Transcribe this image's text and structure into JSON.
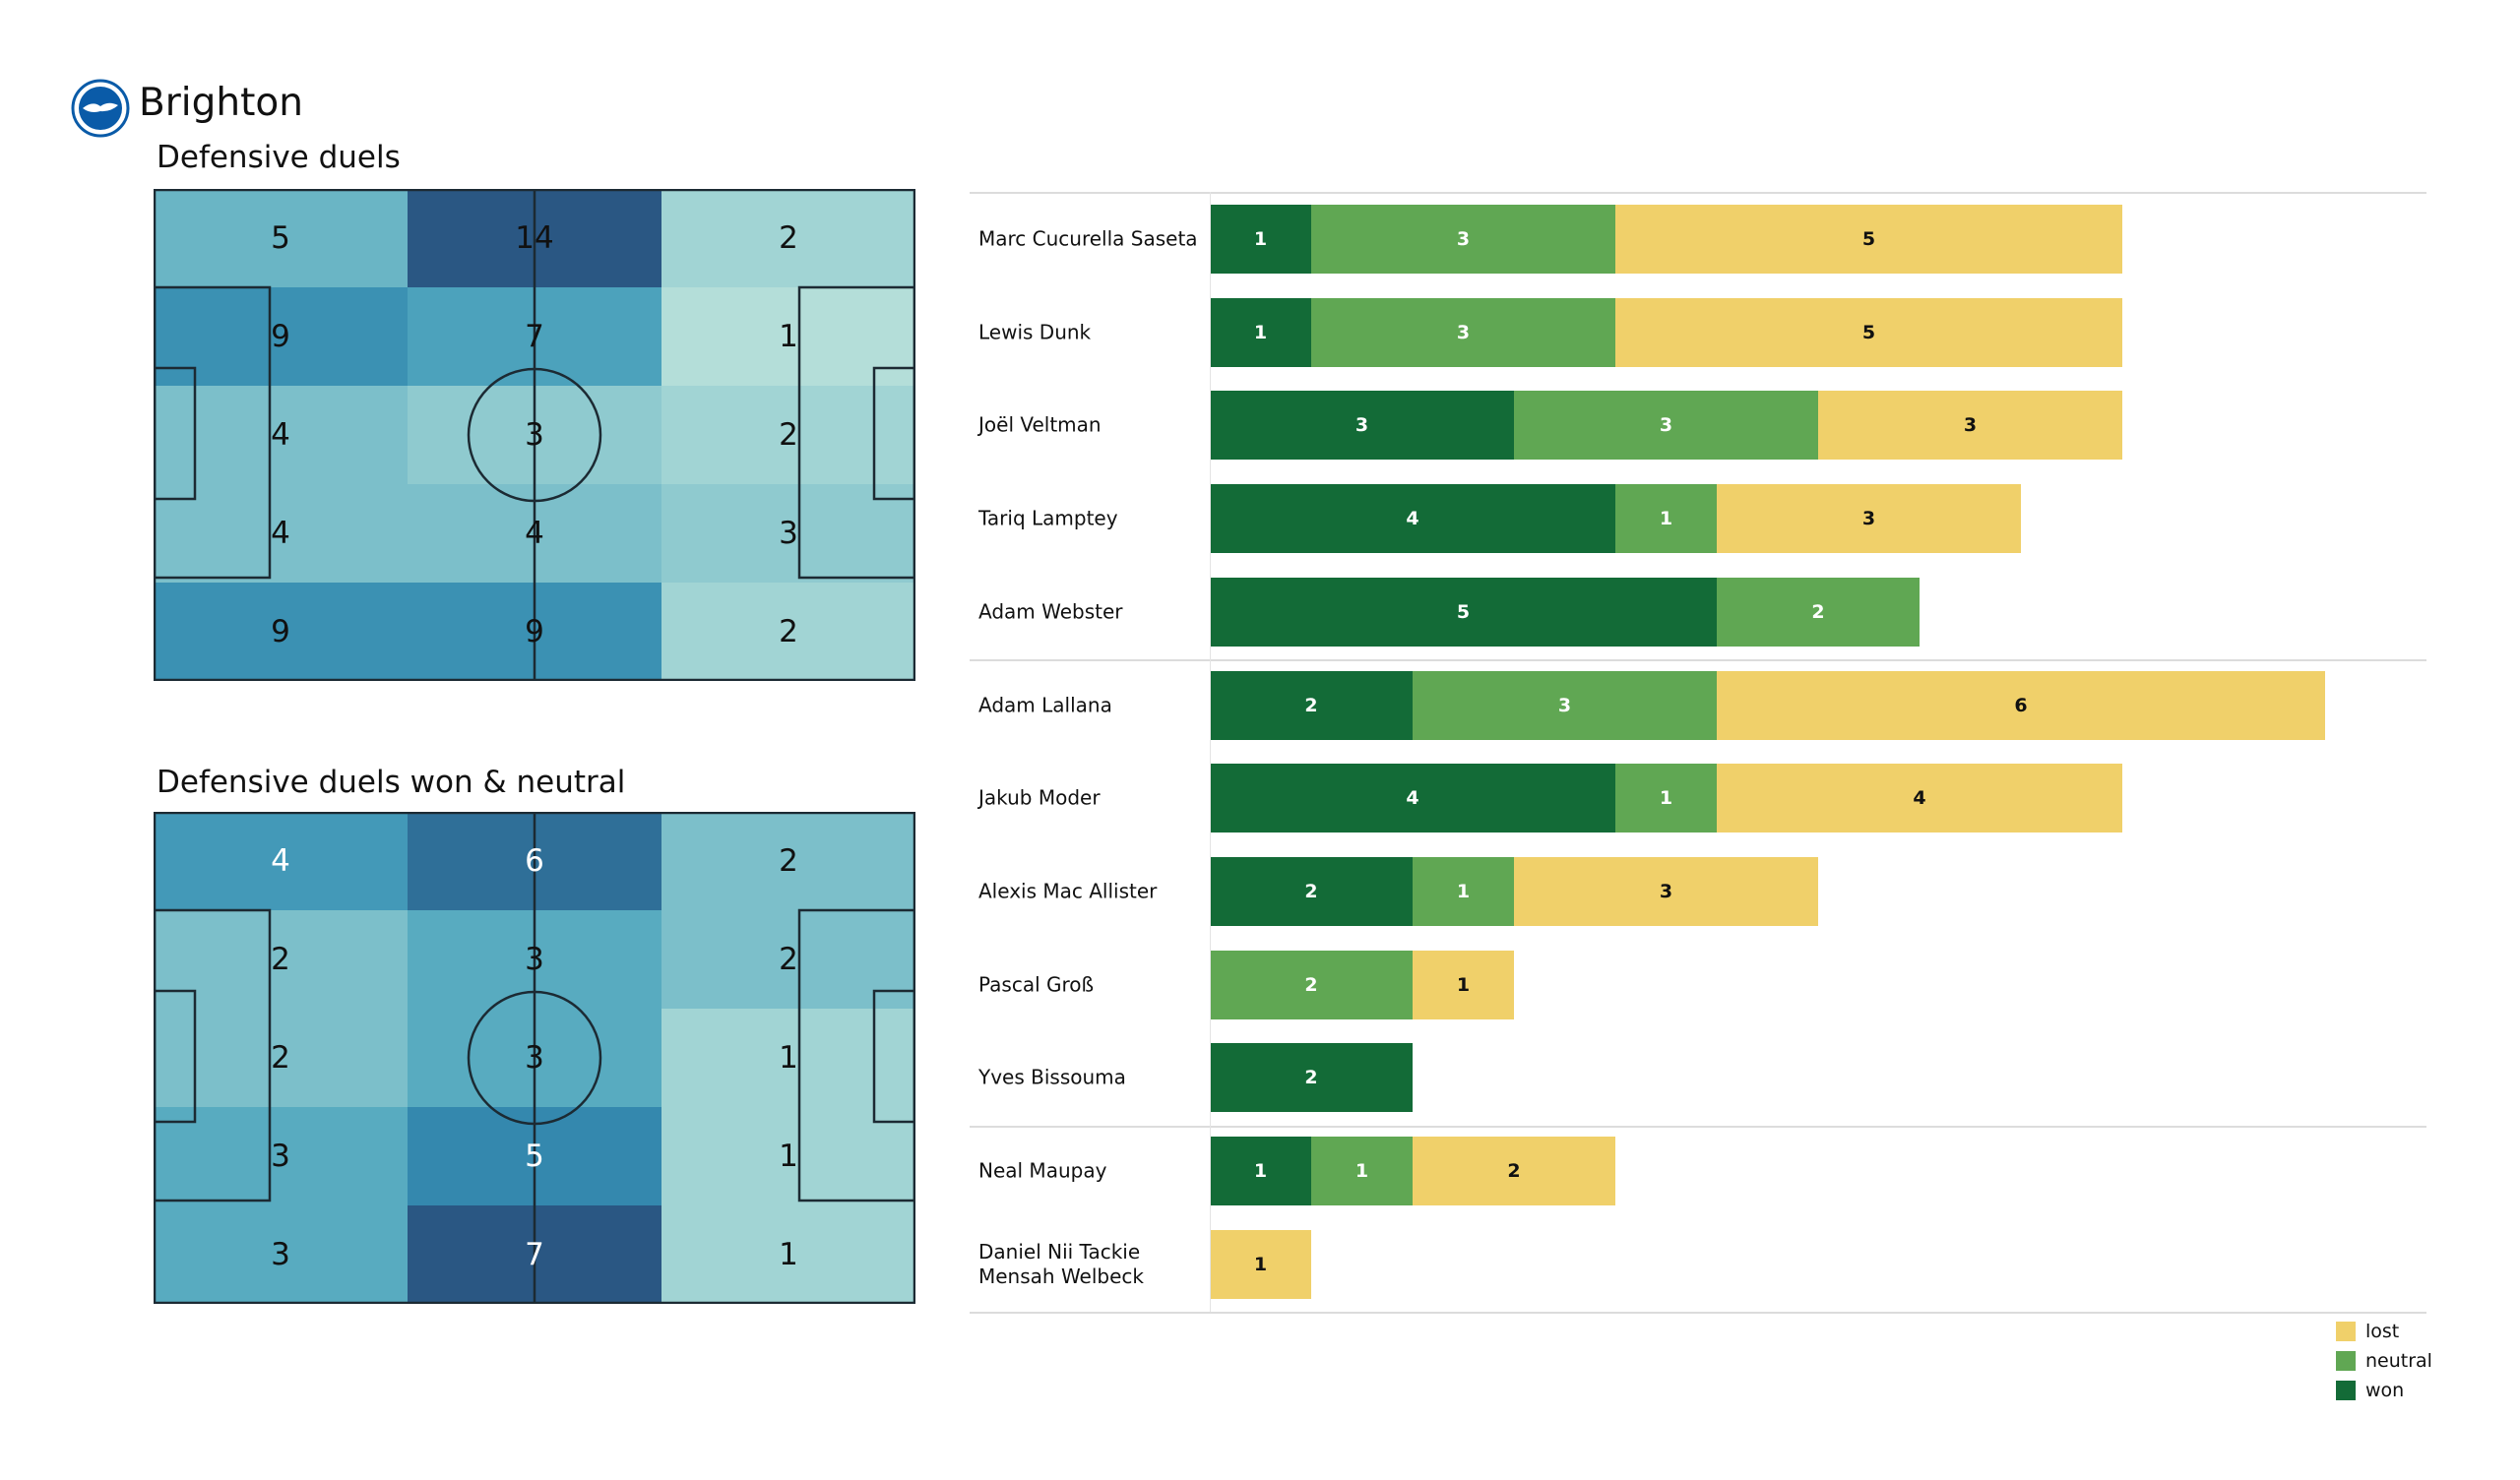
{
  "header": {
    "team": "Brighton",
    "logo_icon": "brighton-crest"
  },
  "chart_data": [
    {
      "type": "heatmap",
      "title": "Defensive duels",
      "rows": [
        [
          5,
          14,
          2
        ],
        [
          9,
          7,
          1
        ],
        [
          4,
          3,
          2
        ],
        [
          4,
          4,
          3
        ],
        [
          9,
          9,
          2
        ]
      ]
    },
    {
      "type": "heatmap",
      "title": "Defensive duels won & neutral",
      "rows": [
        [
          4,
          6,
          2
        ],
        [
          2,
          3,
          2
        ],
        [
          2,
          3,
          1
        ],
        [
          3,
          5,
          1
        ],
        [
          3,
          7,
          1
        ]
      ]
    },
    {
      "type": "bar",
      "orientation": "horizontal-stacked",
      "legend_placement": "bottom-right",
      "legend": [
        "lost",
        "neutral",
        "won"
      ],
      "colors": {
        "won": "#136b37",
        "neutral": "#60a753",
        "lost": "#f0d06a"
      },
      "groups": [
        [
          {
            "name": "Marc Cucurella Saseta",
            "won": 1,
            "neutral": 3,
            "lost": 5
          },
          {
            "name": "Lewis Dunk",
            "won": 1,
            "neutral": 3,
            "lost": 5
          },
          {
            "name": "Joël Veltman",
            "won": 3,
            "neutral": 3,
            "lost": 3
          },
          {
            "name": "Tariq Lamptey",
            "won": 4,
            "neutral": 1,
            "lost": 3
          },
          {
            "name": "Adam Webster",
            "won": 5,
            "neutral": 2,
            "lost": 0
          }
        ],
        [
          {
            "name": "Adam Lallana",
            "won": 2,
            "neutral": 3,
            "lost": 6
          },
          {
            "name": "Jakub Moder",
            "won": 4,
            "neutral": 1,
            "lost": 4
          },
          {
            "name": "Alexis Mac Allister",
            "won": 2,
            "neutral": 1,
            "lost": 3
          },
          {
            "name": "Pascal Groß",
            "won": 0,
            "neutral": 2,
            "lost": 1
          },
          {
            "name": "Yves Bissouma",
            "won": 2,
            "neutral": 0,
            "lost": 0
          }
        ],
        [
          {
            "name": "Neal Maupay",
            "won": 1,
            "neutral": 1,
            "lost": 2
          },
          {
            "name": "Daniel Nii Tackie\nMensah Welbeck",
            "won": 0,
            "neutral": 0,
            "lost": 1
          }
        ]
      ]
    }
  ]
}
